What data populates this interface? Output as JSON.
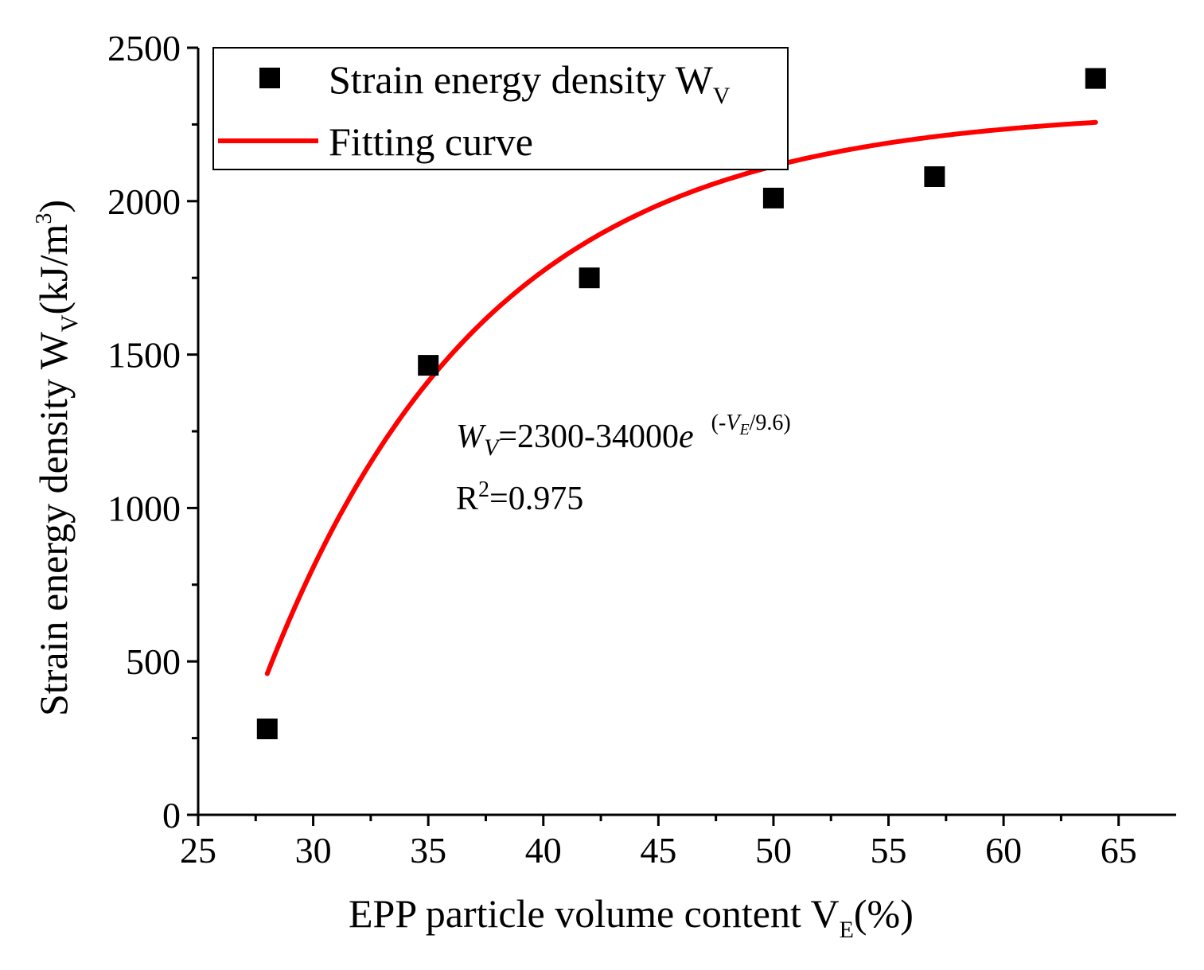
{
  "chart_data": {
    "type": "scatter",
    "title": "",
    "xlabel": "EPP particle volume content V",
    "xlabel_sub": "E",
    "xlabel_tail": "(%)",
    "ylabel": "Strain energy density W",
    "ylabel_sub": "V",
    "ylabel_mid": "(kJ/m",
    "ylabel_sup": "3",
    "ylabel_tail": ")",
    "xlim": [
      25,
      67.5
    ],
    "ylim": [
      0,
      2500
    ],
    "xticks": [
      25,
      30,
      35,
      40,
      45,
      50,
      55,
      60,
      65
    ],
    "xtick_labels": [
      "25",
      "30",
      "35",
      "40",
      "45",
      "50",
      "55",
      "60",
      "65"
    ],
    "yticks": [
      0,
      500,
      1000,
      1500,
      2000,
      2500
    ],
    "ytick_labels": [
      "0",
      "500",
      "1000",
      "1500",
      "2000",
      "2500"
    ],
    "series": [
      {
        "name": "Strain energy density W",
        "name_sub": "V",
        "kind": "scatter",
        "marker": "square",
        "color": "#000000",
        "x": [
          28,
          35,
          42,
          50,
          57,
          64
        ],
        "y": [
          280,
          1465,
          1750,
          2010,
          2080,
          2400
        ]
      },
      {
        "name": "Fitting curve",
        "kind": "line",
        "color": "#ff0000",
        "equation": {
          "a": 2300,
          "b": 34000,
          "c": 9.6
        },
        "x_range": [
          28,
          64
        ]
      }
    ],
    "legend_position": "top-left",
    "annotations": {
      "eq_lhs": "W",
      "eq_lhs_sub": "V",
      "eq_mid": "=2300-34000",
      "eq_e": "e",
      "eq_exp_open": "(-",
      "eq_exp_v": "V",
      "eq_exp_v_sub": "E",
      "eq_exp_close": "/9.6)",
      "r2_base": "R",
      "r2_sup": "2",
      "r2_value": "=0.975"
    }
  }
}
